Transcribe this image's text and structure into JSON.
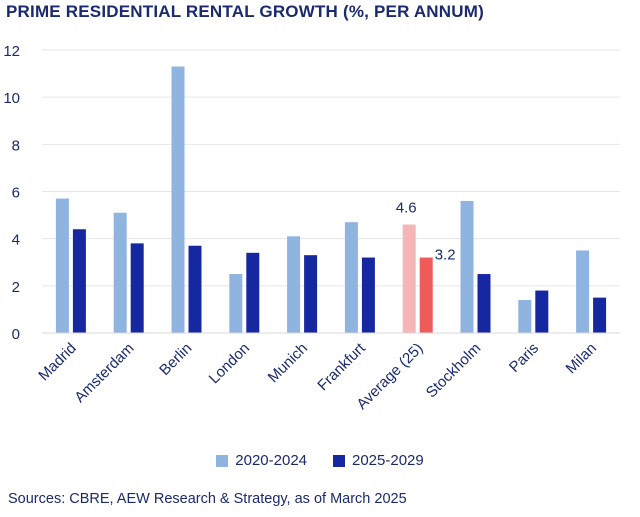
{
  "title": "PRIME RESIDENTIAL RENTAL GROWTH (%, PER ANNUM)",
  "source": "Sources: CBRE, AEW Research & Strategy, as of March 2025",
  "colors": {
    "series1": "#8fb4e0",
    "series2": "#1628a0",
    "highlight1": "#f7b6b6",
    "highlight2": "#ef5a5a",
    "text": "#1a2a6c",
    "gridline": "#e6e6e6"
  },
  "chart_data": {
    "type": "bar",
    "title": "PRIME RESIDENTIAL RENTAL GROWTH (%, PER ANNUM)",
    "xlabel": "",
    "ylabel": "",
    "ylim": [
      0,
      12
    ],
    "yticks": [
      0,
      2,
      4,
      6,
      8,
      10,
      12
    ],
    "grid": true,
    "legend_position": "bottom",
    "categories": [
      "Madrid",
      "Amsterdam",
      "Berlin",
      "London",
      "Munich",
      "Frankfurt",
      "Average (25)",
      "Stockholm",
      "Paris",
      "Milan"
    ],
    "highlight_category": "Average (25)",
    "series": [
      {
        "name": "2020-2024",
        "values": [
          5.7,
          5.1,
          11.3,
          2.5,
          4.1,
          4.7,
          4.6,
          5.6,
          1.4,
          3.5
        ]
      },
      {
        "name": "2025-2029",
        "values": [
          4.4,
          3.8,
          3.7,
          3.4,
          3.3,
          3.2,
          3.2,
          2.5,
          1.8,
          1.5
        ]
      }
    ],
    "data_labels": [
      {
        "category": "Average (25)",
        "series": "2020-2024",
        "text": "4.6"
      },
      {
        "category": "Average (25)",
        "series": "2025-2029",
        "text": "3.2"
      }
    ]
  }
}
